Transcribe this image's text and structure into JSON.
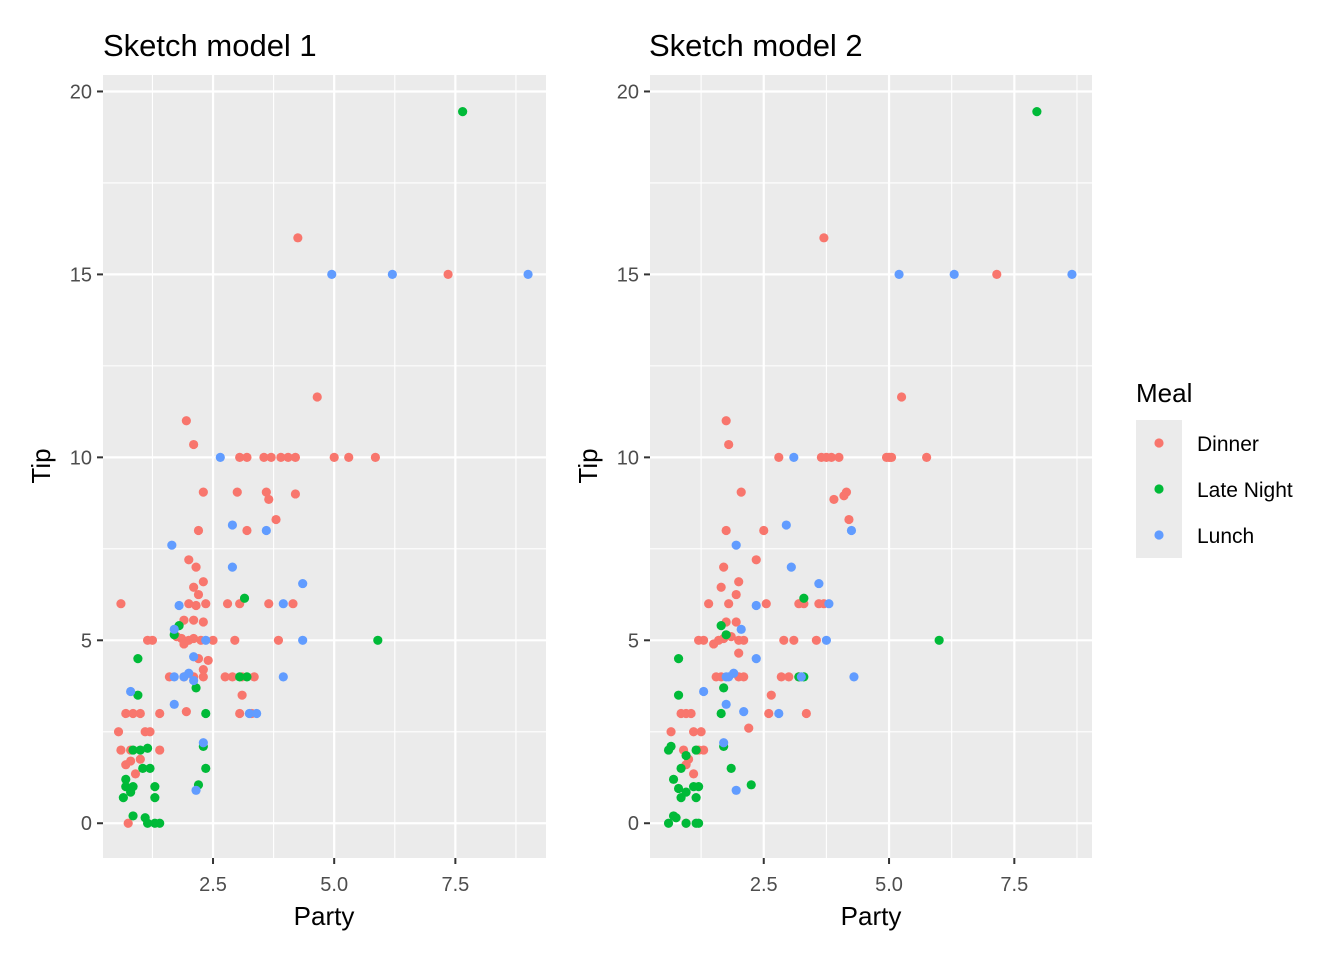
{
  "chart_data": [
    {
      "type": "scatter",
      "title": "Sketch model 1",
      "xlabel": "Party",
      "ylabel": "Tip",
      "xlim": [
        0.23,
        9.37
      ],
      "ylim": [
        -0.95,
        20.45
      ],
      "xticks": [
        2.5,
        5.0,
        7.5
      ],
      "xtick_labels": [
        "2.5",
        "5.0",
        "7.5"
      ],
      "yticks": [
        0,
        5,
        10,
        15,
        20
      ],
      "ytick_labels": [
        "0",
        "5",
        "10",
        "15",
        "20"
      ],
      "grid": true,
      "series": [
        {
          "name": "Dinner",
          "color": "#F8766D",
          "points": [
            [
              7.35,
              15
            ],
            [
              4.25,
              16
            ],
            [
              4.65,
              11.65
            ],
            [
              1.95,
              11
            ],
            [
              2.1,
              10.35
            ],
            [
              3.05,
              10
            ],
            [
              3.2,
              10
            ],
            [
              3.55,
              10
            ],
            [
              3.7,
              10
            ],
            [
              3.9,
              10
            ],
            [
              4.05,
              10
            ],
            [
              4.2,
              10
            ],
            [
              5.0,
              10
            ],
            [
              5.3,
              10
            ],
            [
              5.85,
              10
            ],
            [
              3.0,
              9.05
            ],
            [
              3.6,
              9.05
            ],
            [
              4.2,
              9.0
            ],
            [
              2.3,
              9.05
            ],
            [
              3.65,
              8.85
            ],
            [
              3.8,
              8.3
            ],
            [
              2.2,
              8.0
            ],
            [
              2.0,
              7.2
            ],
            [
              2.15,
              7.0
            ],
            [
              3.2,
              8.0
            ],
            [
              2.1,
              6.45
            ],
            [
              2.3,
              6.6
            ],
            [
              2.2,
              6.25
            ],
            [
              2.0,
              6.0
            ],
            [
              2.15,
              5.95
            ],
            [
              2.35,
              6.0
            ],
            [
              2.8,
              6.0
            ],
            [
              3.05,
              6.0
            ],
            [
              3.65,
              6.0
            ],
            [
              4.15,
              6.0
            ],
            [
              0.6,
              6.0
            ],
            [
              1.9,
              5.55
            ],
            [
              2.1,
              5.55
            ],
            [
              2.3,
              5.5
            ],
            [
              1.75,
              5.1
            ],
            [
              1.85,
              5.05
            ],
            [
              2.0,
              5.0
            ],
            [
              2.1,
              5.05
            ],
            [
              2.25,
              5.0
            ],
            [
              1.25,
              5.0
            ],
            [
              1.15,
              5.0
            ],
            [
              2.5,
              5.0
            ],
            [
              2.95,
              5.0
            ],
            [
              3.85,
              5.0
            ],
            [
              1.9,
              4.9
            ],
            [
              2.2,
              4.5
            ],
            [
              2.4,
              4.45
            ],
            [
              2.3,
              4.2
            ],
            [
              1.6,
              4.0
            ],
            [
              1.9,
              4.0
            ],
            [
              2.1,
              4.0
            ],
            [
              2.3,
              4.0
            ],
            [
              2.75,
              4.0
            ],
            [
              2.9,
              4.0
            ],
            [
              3.1,
              4.0
            ],
            [
              3.35,
              4.0
            ],
            [
              1.95,
              3.05
            ],
            [
              3.1,
              3.5
            ],
            [
              3.05,
              3.0
            ],
            [
              3.3,
              3.0
            ],
            [
              0.7,
              3.0
            ],
            [
              0.85,
              3.0
            ],
            [
              1.0,
              3.0
            ],
            [
              1.4,
              3.0
            ],
            [
              0.55,
              2.5
            ],
            [
              1.1,
              2.5
            ],
            [
              1.2,
              2.5
            ],
            [
              0.6,
              2.0
            ],
            [
              0.8,
              2.0
            ],
            [
              1.4,
              2.0
            ],
            [
              1.0,
              1.75
            ],
            [
              0.7,
              1.6
            ],
            [
              0.8,
              1.7
            ],
            [
              0.9,
              1.35
            ],
            [
              0.75,
              0.0
            ]
          ]
        },
        {
          "name": "Late Night",
          "color": "#00BA38",
          "points": [
            [
              7.65,
              19.45
            ],
            [
              5.9,
              5.0
            ],
            [
              3.15,
              6.15
            ],
            [
              1.8,
              5.4
            ],
            [
              1.7,
              5.15
            ],
            [
              0.95,
              4.5
            ],
            [
              2.15,
              3.7
            ],
            [
              0.95,
              3.5
            ],
            [
              2.35,
              3.0
            ],
            [
              3.05,
              4.0
            ],
            [
              3.2,
              4.0
            ],
            [
              2.3,
              2.1
            ],
            [
              0.85,
              2.0
            ],
            [
              1.0,
              2.0
            ],
            [
              1.15,
              2.05
            ],
            [
              2.35,
              1.5
            ],
            [
              1.3,
              1.0
            ],
            [
              1.05,
              1.5
            ],
            [
              1.2,
              1.5
            ],
            [
              0.7,
              1.2
            ],
            [
              0.7,
              1.0
            ],
            [
              0.8,
              0.85
            ],
            [
              0.85,
              1.0
            ],
            [
              0.65,
              0.7
            ],
            [
              2.2,
              1.05
            ],
            [
              1.3,
              0.7
            ],
            [
              0.85,
              0.2
            ],
            [
              1.1,
              0.15
            ],
            [
              1.15,
              0.0
            ],
            [
              1.3,
              0.0
            ],
            [
              1.4,
              0.0
            ]
          ]
        },
        {
          "name": "Lunch",
          "color": "#619CFF",
          "points": [
            [
              4.95,
              15
            ],
            [
              6.2,
              15
            ],
            [
              9.0,
              15
            ],
            [
              2.65,
              10
            ],
            [
              2.9,
              8.15
            ],
            [
              3.6,
              8.0
            ],
            [
              1.65,
              7.6
            ],
            [
              2.9,
              7.0
            ],
            [
              4.35,
              6.55
            ],
            [
              1.8,
              5.95
            ],
            [
              3.95,
              6.0
            ],
            [
              4.35,
              5.0
            ],
            [
              1.7,
              5.3
            ],
            [
              2.35,
              5.0
            ],
            [
              2.1,
              4.55
            ],
            [
              1.7,
              4.0
            ],
            [
              1.9,
              4.0
            ],
            [
              2.1,
              3.9
            ],
            [
              3.95,
              4.0
            ],
            [
              2.0,
              4.1
            ],
            [
              1.7,
              3.25
            ],
            [
              3.25,
              3.0
            ],
            [
              3.4,
              3.0
            ],
            [
              0.8,
              3.6
            ],
            [
              2.3,
              2.2
            ],
            [
              2.15,
              0.9
            ]
          ]
        }
      ]
    },
    {
      "type": "scatter",
      "title": "Sketch model 2",
      "xlabel": "Party",
      "ylabel": "Tip",
      "xlim": [
        0.23,
        9.05
      ],
      "ylim": [
        -0.95,
        20.45
      ],
      "xticks": [
        2.5,
        5.0,
        7.5
      ],
      "xtick_labels": [
        "2.5",
        "5.0",
        "7.5"
      ],
      "yticks": [
        0,
        5,
        10,
        15,
        20
      ],
      "ytick_labels": [
        "0",
        "5",
        "10",
        "15",
        "20"
      ],
      "grid": true,
      "series": [
        {
          "name": "Dinner",
          "color": "#F8766D",
          "points": [
            [
              7.15,
              15
            ],
            [
              3.7,
              16
            ],
            [
              5.25,
              11.65
            ],
            [
              1.75,
              11
            ],
            [
              1.8,
              10.35
            ],
            [
              2.8,
              10
            ],
            [
              3.65,
              10
            ],
            [
              3.75,
              10
            ],
            [
              3.85,
              10
            ],
            [
              4.0,
              10
            ],
            [
              4.95,
              10
            ],
            [
              5.0,
              10
            ],
            [
              5.05,
              10
            ],
            [
              5.75,
              10
            ],
            [
              2.05,
              9.05
            ],
            [
              4.15,
              9.05
            ],
            [
              4.1,
              8.95
            ],
            [
              3.9,
              8.85
            ],
            [
              4.2,
              8.3
            ],
            [
              1.75,
              8.0
            ],
            [
              2.5,
              8.0
            ],
            [
              2.35,
              7.2
            ],
            [
              1.7,
              7.0
            ],
            [
              1.65,
              6.45
            ],
            [
              2.0,
              6.6
            ],
            [
              1.95,
              6.25
            ],
            [
              1.4,
              6.0
            ],
            [
              1.8,
              6.0
            ],
            [
              2.55,
              6.0
            ],
            [
              3.2,
              6.0
            ],
            [
              3.3,
              6.0
            ],
            [
              3.6,
              6.0
            ],
            [
              3.7,
              6.0
            ],
            [
              1.75,
              5.5
            ],
            [
              1.95,
              5.5
            ],
            [
              1.6,
              5.0
            ],
            [
              1.7,
              5.05
            ],
            [
              1.85,
              5.1
            ],
            [
              2.0,
              5.0
            ],
            [
              2.1,
              5.0
            ],
            [
              1.2,
              5.0
            ],
            [
              1.3,
              5.0
            ],
            [
              2.9,
              5.0
            ],
            [
              3.1,
              5.0
            ],
            [
              3.55,
              5.0
            ],
            [
              1.5,
              4.9
            ],
            [
              2.0,
              4.65
            ],
            [
              1.55,
              4.0
            ],
            [
              1.65,
              4.0
            ],
            [
              2.0,
              4.0
            ],
            [
              2.1,
              4.0
            ],
            [
              2.85,
              4.0
            ],
            [
              3.0,
              4.0
            ],
            [
              3.2,
              4.0
            ],
            [
              2.65,
              3.5
            ],
            [
              3.35,
              3.0
            ],
            [
              2.6,
              3.0
            ],
            [
              2.2,
              2.6
            ],
            [
              0.85,
              3.0
            ],
            [
              0.95,
              3.0
            ],
            [
              1.05,
              3.0
            ],
            [
              0.65,
              2.5
            ],
            [
              1.1,
              2.5
            ],
            [
              1.25,
              2.5
            ],
            [
              0.9,
              2.0
            ],
            [
              1.2,
              2.0
            ],
            [
              1.3,
              2.0
            ],
            [
              1.0,
              1.75
            ],
            [
              0.95,
              1.6
            ],
            [
              1.1,
              1.35
            ],
            [
              0.95,
              0.0
            ]
          ]
        },
        {
          "name": "Late Night",
          "color": "#00BA38",
          "points": [
            [
              7.95,
              19.45
            ],
            [
              6.0,
              5.0
            ],
            [
              3.3,
              6.15
            ],
            [
              1.65,
              5.4
            ],
            [
              1.75,
              5.15
            ],
            [
              0.8,
              4.5
            ],
            [
              1.7,
              3.7
            ],
            [
              0.8,
              3.5
            ],
            [
              1.65,
              3.0
            ],
            [
              3.2,
              4.0
            ],
            [
              3.3,
              4.0
            ],
            [
              1.7,
              2.1
            ],
            [
              0.65,
              2.1
            ],
            [
              0.6,
              2.0
            ],
            [
              1.15,
              2.0
            ],
            [
              0.95,
              1.85
            ],
            [
              1.85,
              1.5
            ],
            [
              0.85,
              1.5
            ],
            [
              0.7,
              1.2
            ],
            [
              1.1,
              1.0
            ],
            [
              1.2,
              1.0
            ],
            [
              0.95,
              0.85
            ],
            [
              0.8,
              0.95
            ],
            [
              1.15,
              0.7
            ],
            [
              0.85,
              0.7
            ],
            [
              2.25,
              1.05
            ],
            [
              0.7,
              0.2
            ],
            [
              0.75,
              0.15
            ],
            [
              0.6,
              0.0
            ],
            [
              0.95,
              0.0
            ],
            [
              1.15,
              0.0
            ],
            [
              1.2,
              0.0
            ]
          ]
        },
        {
          "name": "Lunch",
          "color": "#619CFF",
          "points": [
            [
              5.2,
              15
            ],
            [
              6.3,
              15
            ],
            [
              8.65,
              15
            ],
            [
              3.1,
              10
            ],
            [
              2.95,
              8.15
            ],
            [
              4.25,
              8.0
            ],
            [
              1.95,
              7.6
            ],
            [
              3.05,
              7.0
            ],
            [
              3.6,
              6.55
            ],
            [
              2.35,
              5.95
            ],
            [
              3.8,
              6.0
            ],
            [
              3.75,
              5.0
            ],
            [
              2.05,
              5.3
            ],
            [
              2.35,
              4.5
            ],
            [
              1.9,
              4.1
            ],
            [
              1.75,
              4.0
            ],
            [
              1.8,
              4.0
            ],
            [
              4.3,
              4.0
            ],
            [
              1.75,
              3.25
            ],
            [
              2.1,
              3.05
            ],
            [
              2.8,
              3.0
            ],
            [
              1.3,
              3.6
            ],
            [
              1.7,
              2.2
            ],
            [
              1.95,
              0.9
            ],
            [
              3.25,
              4.0
            ]
          ]
        }
      ]
    }
  ],
  "legend": {
    "title": "Meal",
    "position": "right",
    "items": [
      {
        "label": "Dinner",
        "color": "#F8766D"
      },
      {
        "label": "Late Night",
        "color": "#00BA38"
      },
      {
        "label": "Lunch",
        "color": "#619CFF"
      }
    ]
  }
}
